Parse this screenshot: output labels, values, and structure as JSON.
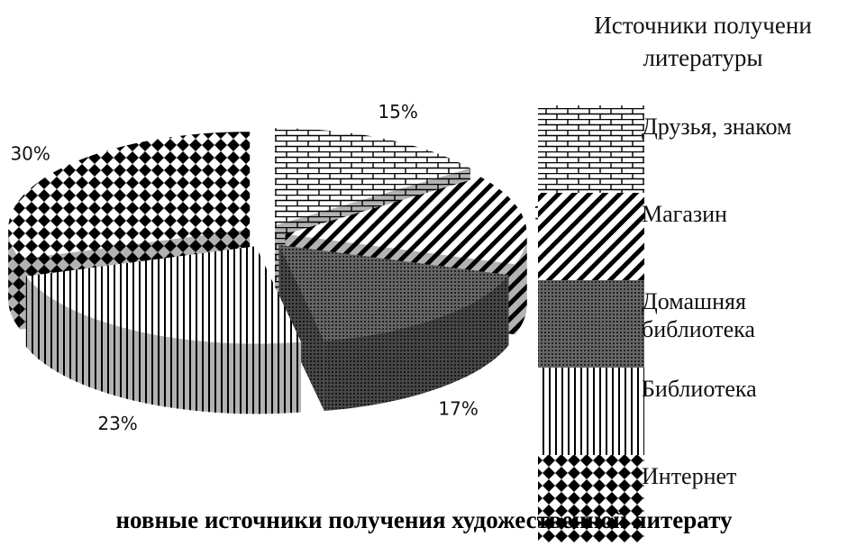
{
  "chart_data": {
    "type": "pie",
    "title": "новные источники получения художественной литерату",
    "legend_title": "Источники получени литературы",
    "categories": [
      "Друзья, знаком",
      "Магазин",
      "Домашняя библиотека",
      "Библиотека",
      "Интернет"
    ],
    "values": [
      15,
      15,
      17,
      23,
      30
    ],
    "value_labels": [
      "15%",
      "15%",
      "17%",
      "23%",
      "30%"
    ]
  }
}
